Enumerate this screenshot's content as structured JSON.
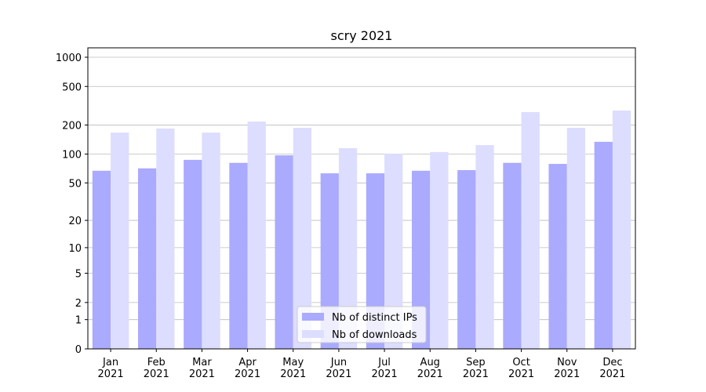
{
  "chart_data": {
    "type": "bar",
    "title": "scry 2021",
    "categories": [
      "Jan\n2021",
      "Feb\n2021",
      "Mar\n2021",
      "Apr\n2021",
      "May\n2021",
      "Jun\n2021",
      "Jul\n2021",
      "Aug\n2021",
      "Sep\n2021",
      "Oct\n2021",
      "Nov\n2021",
      "Dec\n2021"
    ],
    "series": [
      {
        "name": "Nb of distinct IPs",
        "color": "#aaaaff",
        "values": [
          67,
          71,
          87,
          81,
          97,
          63,
          63,
          67,
          68,
          81,
          79,
          134
        ]
      },
      {
        "name": "Nb of downloads",
        "color": "#ddddff",
        "values": [
          167,
          184,
          167,
          217,
          187,
          115,
          101,
          105,
          124,
          272,
          187,
          282
        ]
      }
    ],
    "yscale": "log1p",
    "ylim": [
      0,
      1250
    ],
    "yticks": [
      0,
      1,
      2,
      5,
      10,
      20,
      50,
      100,
      200,
      500,
      1000
    ],
    "grid": true,
    "legend": "lower center"
  }
}
